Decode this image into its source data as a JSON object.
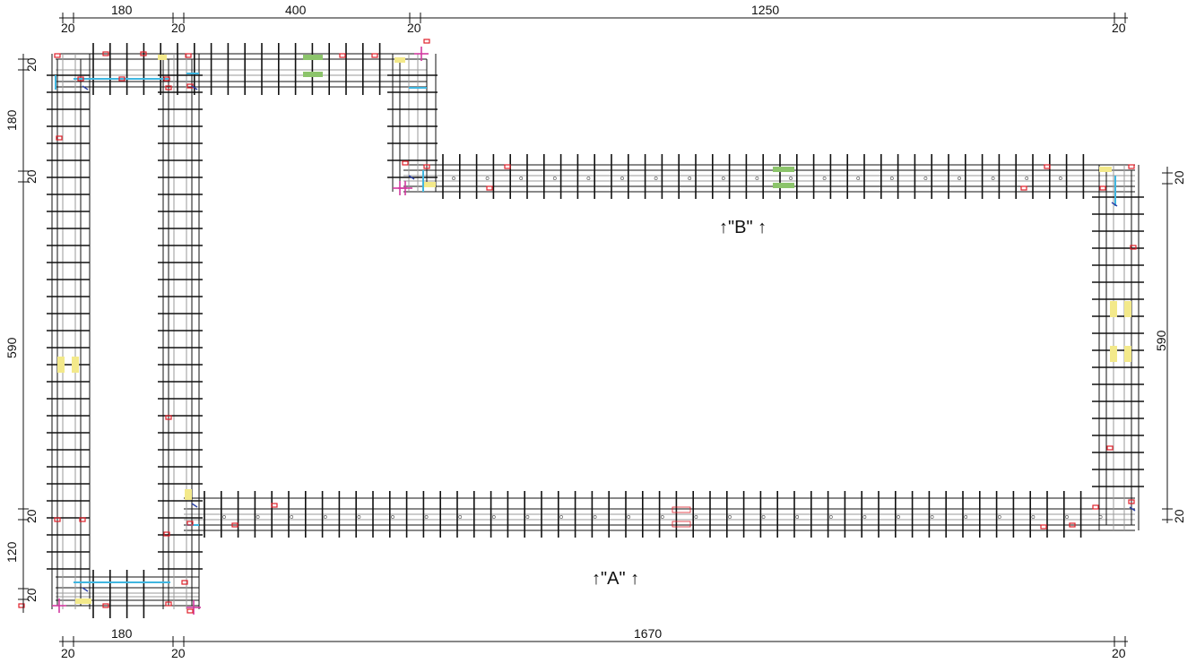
{
  "dimensions": {
    "top": {
      "w20a": "20",
      "w180": "180",
      "w20b": "20",
      "w400": "400",
      "w20c": "20",
      "w1250": "1250",
      "w20d": "20"
    },
    "bottom": {
      "w20a": "20",
      "w180": "180",
      "w20b": "20",
      "w1670": "1670",
      "w20c": "20"
    },
    "left": {
      "h20a": "20",
      "h180": "180",
      "h20b": "20",
      "h590": "590",
      "h20c": "20",
      "h120": "120",
      "h20d": "20"
    },
    "right": {
      "h20a": "20",
      "h590": "590",
      "h20b": "20"
    }
  },
  "labels": {
    "a": "↑\"A\" ↑",
    "b": "↑\"B\" ↑"
  },
  "colors": {
    "line": "#111111",
    "grey": "#9a9a9a",
    "cyan": "#3fb6e0",
    "red": "#e0202a",
    "yellow": "#f3e98a",
    "green": "#8cc46b",
    "magenta": "#d23aa0",
    "blue": "#2a3fa8"
  }
}
